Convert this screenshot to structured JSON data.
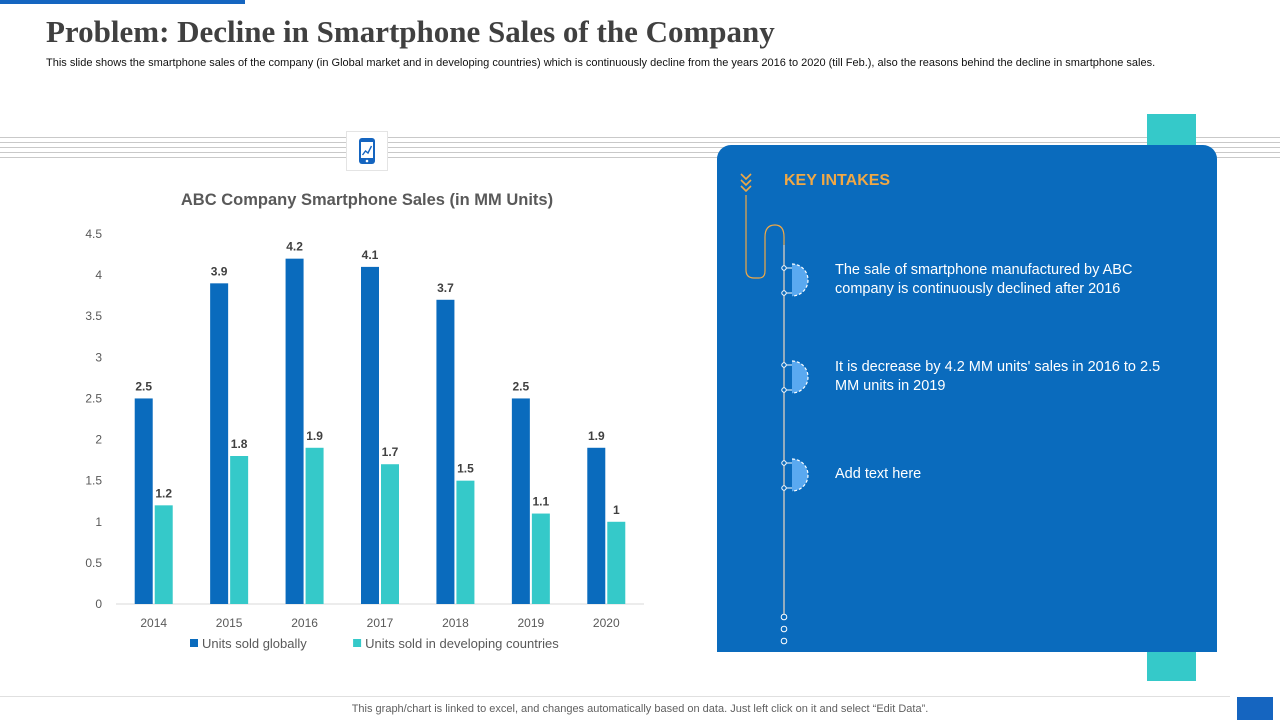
{
  "slide": {
    "title": "Problem: Decline in Smartphone Sales of the Company",
    "subtitle": "This slide shows the smartphone sales of the company (in Global market and in developing countries) which is continuously decline from the years 2016 to 2020 (till Feb.), also the reasons behind the decline in smartphone sales.",
    "footer": "This graph/chart is linked to excel, and changes automatically based on data. Just left click on it and select “Edit Data”."
  },
  "panel": {
    "title": "KEY INTAKES",
    "points": [
      "The sale of smartphone manufactured by ABC company is continuously declined after 2016",
      "It is decrease by 4.2 MM units' sales in 2016 to 2.5 MM units in 2019",
      "Add text here"
    ]
  },
  "colors": {
    "accent_blue": "#1565c0",
    "panel_blue": "#0a6bbd",
    "teal": "#35c9c9",
    "orange": "#f0a845",
    "series_global": "#0a6bbd",
    "series_developing": "#35c9c9"
  },
  "icons": {
    "chart_icon": "phone-chart-icon"
  },
  "chart_data": {
    "type": "bar",
    "title": "ABC Company Smartphone Sales (in MM Units)",
    "categories": [
      "2014",
      "2015",
      "2016",
      "2017",
      "2018",
      "2019",
      "2020"
    ],
    "series": [
      {
        "name": "Units sold globally",
        "values": [
          2.5,
          3.9,
          4.2,
          4.1,
          3.7,
          2.5,
          1.9
        ]
      },
      {
        "name": "Units sold in developing countries",
        "values": [
          1.2,
          1.8,
          1.9,
          1.7,
          1.5,
          1.1,
          1
        ]
      }
    ],
    "yticks": [
      "0",
      "0.5",
      "1",
      "1.5",
      "2",
      "2.5",
      "3",
      "3.5",
      "4",
      "4.5"
    ],
    "ylim": [
      0,
      4.5
    ],
    "xlabel": "",
    "ylabel": "",
    "grid": false,
    "legend": "bottom"
  }
}
